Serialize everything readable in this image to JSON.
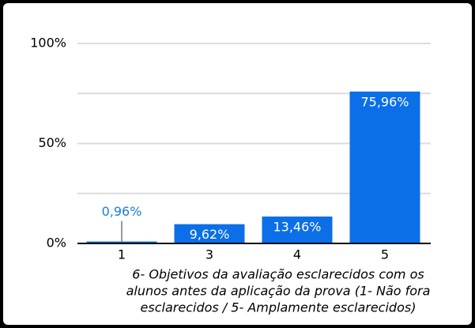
{
  "chart_data": {
    "type": "bar",
    "categories": [
      "1",
      "3",
      "4",
      "5"
    ],
    "values": [
      0.96,
      9.62,
      13.46,
      75.96
    ],
    "value_labels": [
      "0,96%",
      "9,62%",
      "13,46%",
      "75,96%"
    ],
    "color": "#0b6fe8",
    "ylim": [
      0,
      100
    ],
    "yticks": [
      {
        "value": 0,
        "label": "0%"
      },
      {
        "value": 50,
        "label": "50%"
      },
      {
        "value": 100,
        "label": "100%"
      }
    ],
    "minor_yticks": [
      25,
      75
    ],
    "grid": true,
    "xlabel": [
      "6- Objetivos da avaliação esclarecidos com os",
      "alunos antes da aplicação da prova (1- Não fora",
      "esclarecidos / 5- Amplamente esclarecidos)"
    ]
  }
}
